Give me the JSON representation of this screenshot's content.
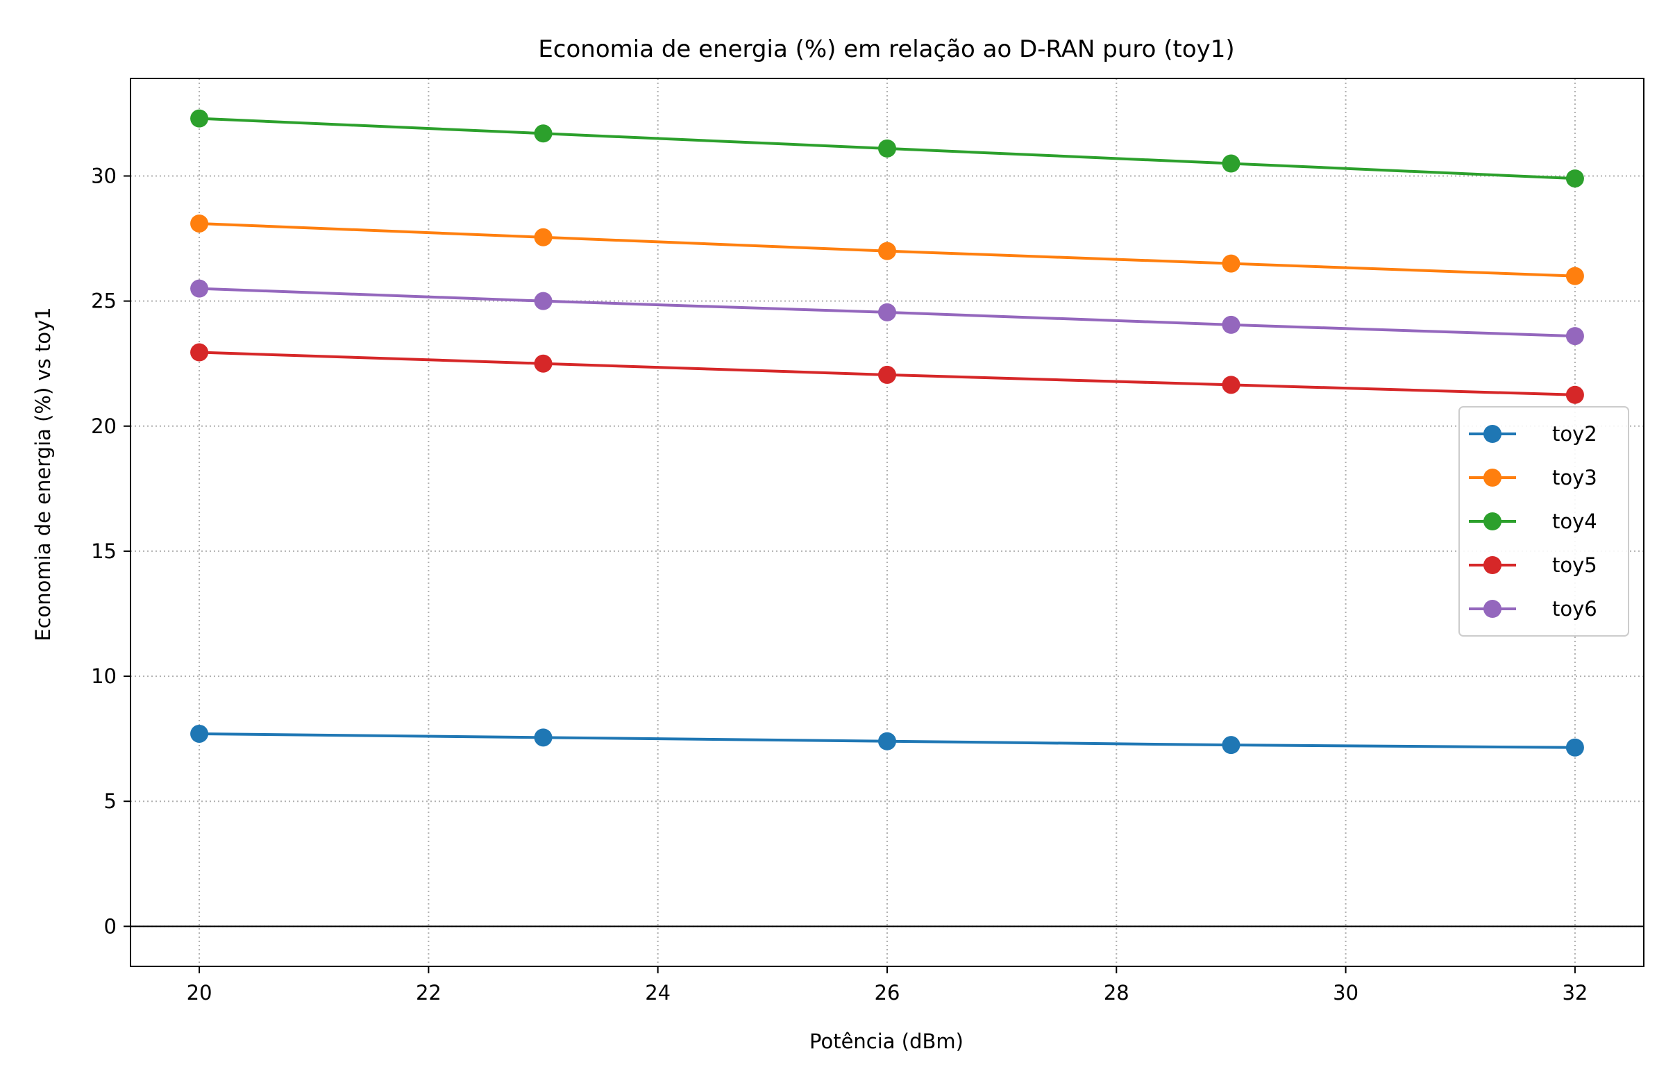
{
  "chart_data": {
    "type": "line",
    "title": "Economia de energia (%) em relação ao D-RAN puro (toy1)",
    "xlabel": "Potência (dBm)",
    "ylabel": "Economia de energia (%) vs toy1",
    "x": [
      20,
      23,
      26,
      29,
      32
    ],
    "xlim": [
      19.4,
      32.6
    ],
    "ylim": [
      -1.6,
      33.9
    ],
    "xticks": [
      20,
      22,
      24,
      26,
      28,
      30,
      32
    ],
    "yticks": [
      0,
      5,
      10,
      15,
      20,
      25,
      30
    ],
    "grid": true,
    "grid_style": "dotted",
    "zero_line": true,
    "legend_position": "right",
    "series": [
      {
        "name": "toy2",
        "color": "#1f77b4",
        "values": [
          7.7,
          7.55,
          7.4,
          7.25,
          7.15
        ]
      },
      {
        "name": "toy3",
        "color": "#ff7f0e",
        "values": [
          28.1,
          27.55,
          27.0,
          26.5,
          26.0
        ]
      },
      {
        "name": "toy4",
        "color": "#2ca02c",
        "values": [
          32.3,
          31.7,
          31.1,
          30.5,
          29.9
        ]
      },
      {
        "name": "toy5",
        "color": "#d62728",
        "values": [
          22.95,
          22.5,
          22.05,
          21.65,
          21.25
        ]
      },
      {
        "name": "toy6",
        "color": "#9467bd",
        "values": [
          25.5,
          25.0,
          24.55,
          24.05,
          23.6
        ]
      }
    ]
  }
}
